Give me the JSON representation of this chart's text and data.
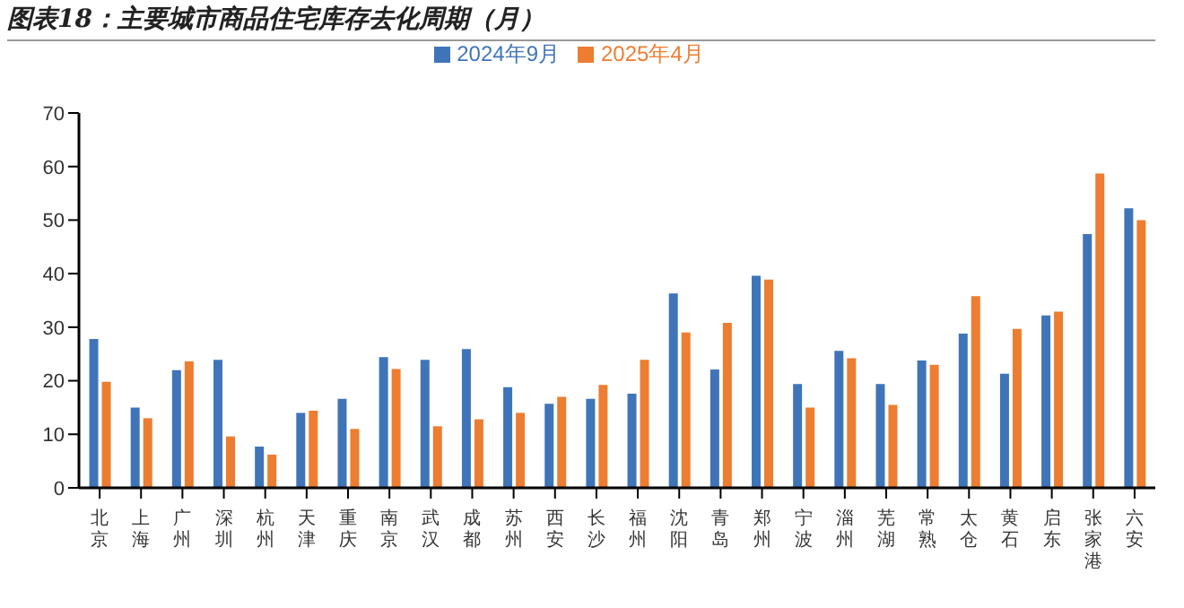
{
  "chart_data": {
    "type": "bar",
    "title": "图表18：主要城市商品住宅库存去化周期（月）",
    "categories": [
      "北京",
      "上海",
      "广州",
      "深圳",
      "杭州",
      "天津",
      "重庆",
      "南京",
      "武汉",
      "成都",
      "苏州",
      "西安",
      "长沙",
      "福州",
      "沈阳",
      "青岛",
      "郑州",
      "宁波",
      "淄州",
      "芜湖",
      "常熟",
      "太仓",
      "黄石",
      "启东",
      "张家港",
      "六安"
    ],
    "series": [
      {
        "name": "2024年9月",
        "color": "#3f75b8",
        "values": [
          27.8,
          15,
          22,
          23.9,
          7.7,
          14,
          16.6,
          24.4,
          23.9,
          25.9,
          18.8,
          15.7,
          16.6,
          17.6,
          36.3,
          22.1,
          39.6,
          19.4,
          25.6,
          19.4,
          23.8,
          28.8,
          21.3,
          32.2,
          47.4,
          52.2
        ]
      },
      {
        "name": "2025年4月",
        "color": "#ed7d31",
        "values": [
          19.8,
          13,
          23.6,
          9.6,
          6.2,
          14.4,
          11,
          22.2,
          11.5,
          12.8,
          14,
          17,
          19.2,
          23.9,
          29,
          30.8,
          38.9,
          15,
          24.2,
          15.5,
          23,
          35.8,
          29.7,
          32.9,
          58.7,
          50
        ]
      }
    ],
    "ylim": [
      0,
      70
    ],
    "yticks": [
      0,
      10,
      20,
      30,
      40,
      50,
      60,
      70
    ],
    "grid": false,
    "legend": "top"
  }
}
